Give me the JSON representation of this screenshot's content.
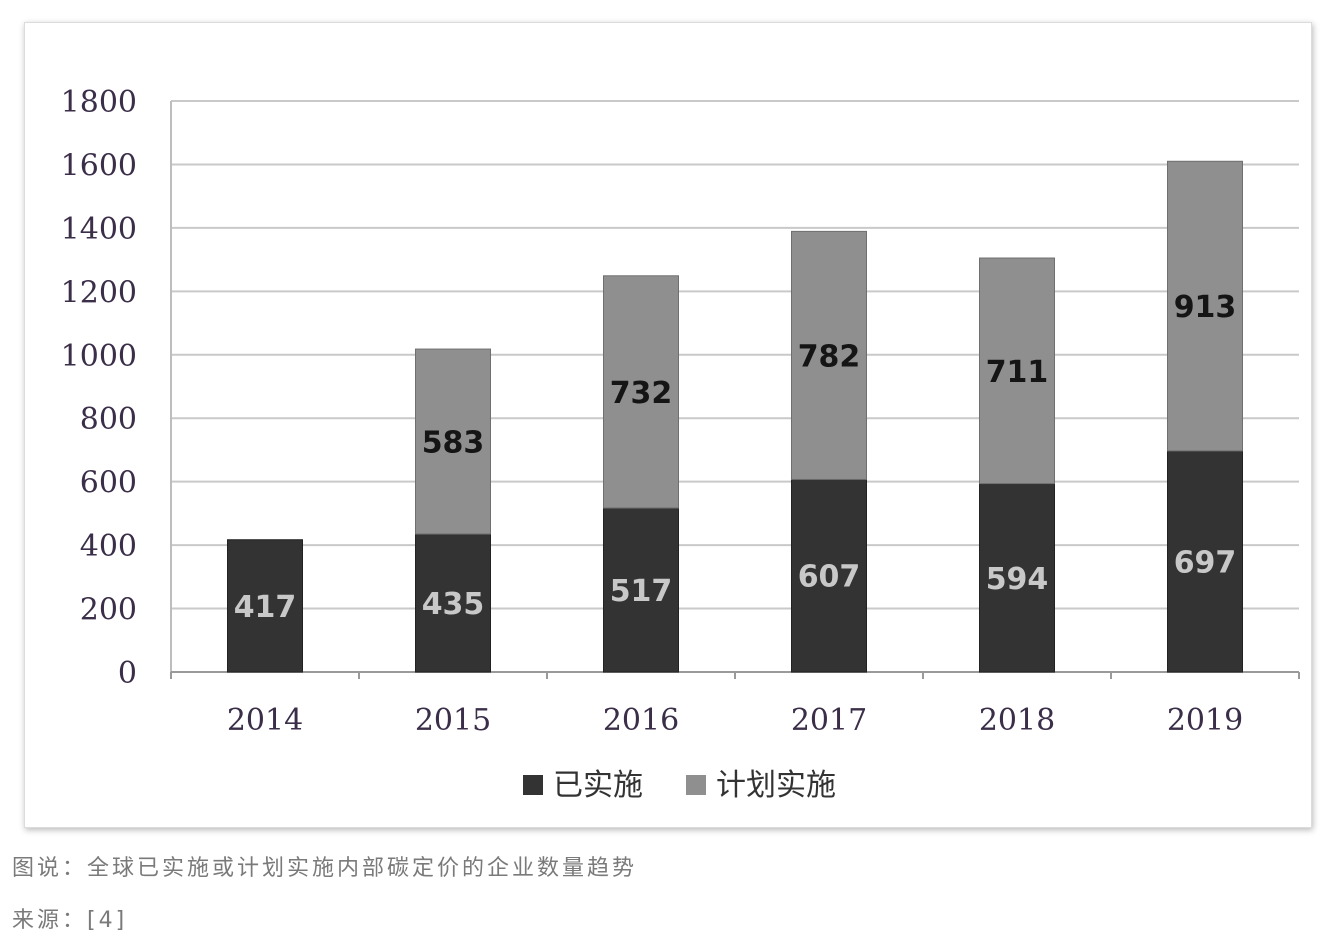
{
  "chart_data": {
    "type": "bar",
    "stacked": true,
    "categories": [
      "2014",
      "2015",
      "2016",
      "2017",
      "2018",
      "2019"
    ],
    "series": [
      {
        "name": "已实施",
        "values": [
          417,
          435,
          517,
          607,
          594,
          697
        ],
        "color": "#333333",
        "label_color": "#c8c8c8"
      },
      {
        "name": "计划实施",
        "values": [
          0,
          583,
          732,
          782,
          711,
          913
        ],
        "color": "#8f8f8f",
        "label_color": "#151515"
      }
    ],
    "y_ticks": [
      "0",
      "200",
      "400",
      "600",
      "800",
      "1000",
      "1200",
      "1400",
      "1600",
      "1800"
    ],
    "ylim": [
      0,
      1800
    ],
    "grid": true,
    "legend_position": "bottom"
  },
  "caption": {
    "figure": "图说：全球已实施或计划实施内部碳定价的企业数量趋势",
    "source": "来源：[4]"
  }
}
